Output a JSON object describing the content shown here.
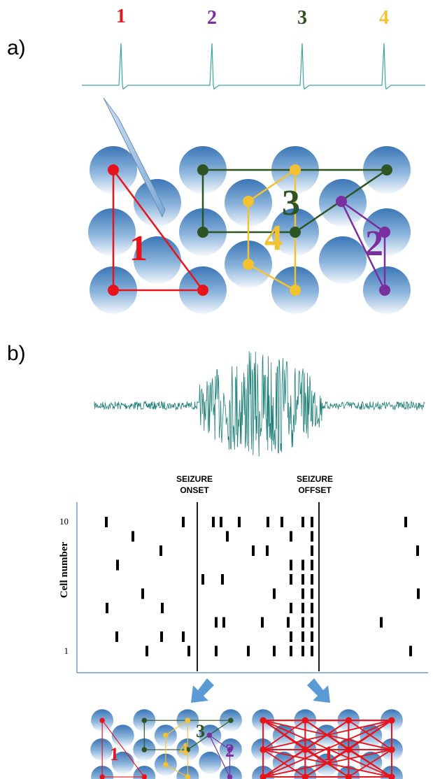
{
  "panel_a": {
    "label": "a)",
    "unit_labels": [
      "1",
      "2",
      "3",
      "4"
    ],
    "ensemble_labels": [
      "1",
      "3",
      "4",
      "2"
    ]
  },
  "panel_b": {
    "label": "b)",
    "onset": [
      "SEIZURE",
      "ONSET"
    ],
    "offset": [
      "SEIZURE",
      "OFFSET"
    ],
    "y_axis_label": "Cell number",
    "y_ticks": [
      "10",
      "1"
    ],
    "before_labels": [
      "1",
      "3",
      "4",
      "2"
    ],
    "after_label": "1"
  }
}
